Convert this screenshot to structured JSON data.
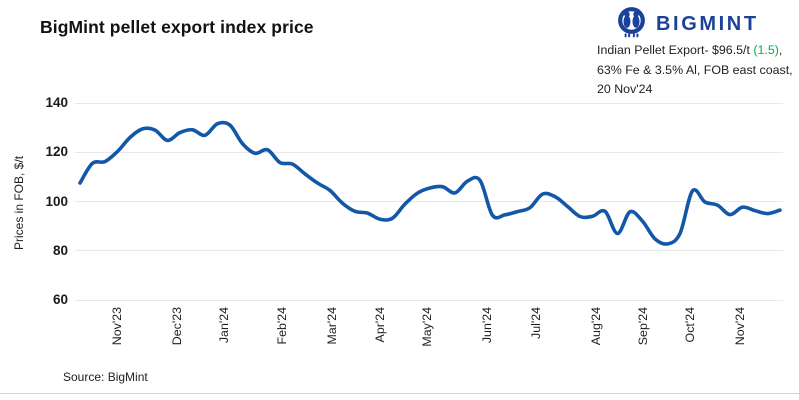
{
  "header": {
    "title": "BigMint pellet export index price",
    "logo_text": "BIGMINT",
    "annotation": {
      "line1_prefix": "Indian Pellet Export- $96.5/t ",
      "line1_change": "(1.5)",
      "line1_suffix": ",",
      "line2": "63% Fe & 3.5% Al, FOB east coast,",
      "line3": "20 Nov'24"
    }
  },
  "chart_data": {
    "type": "line",
    "title": "BigMint pellet export index price",
    "ylabel": "Prices in FOB, $/t",
    "ylim": [
      60,
      140
    ],
    "yticks": [
      140,
      120,
      100,
      80,
      60
    ],
    "grid": "horizontal-only",
    "legend": "none",
    "frequency": "weekly",
    "line_color": "#1257a8",
    "x_tick_labels": [
      "Nov'23",
      "Dec'23",
      "Jan'24",
      "Feb'24",
      "Mar'24",
      "Apr'24",
      "May'24",
      "Jun'24",
      "Jul'24",
      "Aug'24",
      "Sep'24",
      "Oct'24",
      "Nov'24"
    ],
    "x_tick_index": [
      2.94,
      7.74,
      11.52,
      16.14,
      20.14,
      24.0,
      27.74,
      32.54,
      36.48,
      41.26,
      45.06,
      48.8,
      52.8
    ],
    "series": [
      {
        "name": "Indian Pellet Export, 63% Fe & 3.5% Al, FOB east coast ($/t)",
        "values": [
          107.5,
          115.5,
          116.2,
          120.3,
          126,
          129.5,
          129,
          124.8,
          128,
          129.1,
          126.9,
          131.6,
          131,
          123.5,
          119.6,
          121,
          115.8,
          115.2,
          111.2,
          107.5,
          104.5,
          99.3,
          96,
          95.3,
          92.8,
          93.2,
          99,
          103.4,
          105.5,
          106,
          103.5,
          108.3,
          108.6,
          94.4,
          94.6,
          95.9,
          97.5,
          103,
          102,
          98,
          93.9,
          94,
          96,
          87,
          95.8,
          92,
          84.8,
          82.8,
          87,
          104.3,
          99.8,
          98.5,
          94.7,
          97.7,
          96.3,
          95.1,
          96.5
        ]
      }
    ],
    "latest_point": {
      "value": 96.5,
      "change": 1.5,
      "date": "20 Nov'24"
    }
  },
  "footer": {
    "source": "Source: BigMint"
  },
  "colors": {
    "line": "#1257a8",
    "logo": "#1b429b",
    "change_positive": "#00b050",
    "grid": "#e8e8e8"
  }
}
